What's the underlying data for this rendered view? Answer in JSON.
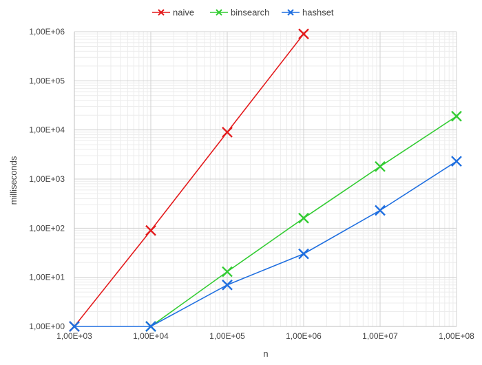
{
  "chart_data": {
    "type": "line",
    "title": "",
    "xlabel": "n",
    "ylabel": "milliseconds",
    "x_scale": "log",
    "y_scale": "log",
    "xlim": [
      1000,
      100000000
    ],
    "ylim": [
      1,
      1000000
    ],
    "x_tick_labels": [
      "1,00E+03",
      "1,00E+04",
      "1,00E+05",
      "1,00E+06",
      "1,00E+07",
      "1,00E+08"
    ],
    "y_tick_labels": [
      "1,00E+00",
      "1,00E+01",
      "1,00E+02",
      "1,00E+03",
      "1,00E+04",
      "1,00E+05",
      "1,00E+06"
    ],
    "grid": true,
    "legend_position": "top",
    "marker": "x",
    "series": [
      {
        "name": "naive",
        "color": "#e31a1c",
        "points": [
          {
            "x": 1000,
            "y": 1
          },
          {
            "x": 10000,
            "y": 90
          },
          {
            "x": 100000,
            "y": 9000
          },
          {
            "x": 1000000,
            "y": 900000
          }
        ]
      },
      {
        "name": "binsearch",
        "color": "#33cc33",
        "points": [
          {
            "x": 10000,
            "y": 1
          },
          {
            "x": 100000,
            "y": 13
          },
          {
            "x": 1000000,
            "y": 160
          },
          {
            "x": 10000000,
            "y": 1800
          },
          {
            "x": 100000000,
            "y": 19000
          }
        ]
      },
      {
        "name": "hashset",
        "color": "#1f6fe0",
        "points": [
          {
            "x": 1000,
            "y": 1
          },
          {
            "x": 10000,
            "y": 1
          },
          {
            "x": 100000,
            "y": 7
          },
          {
            "x": 1000000,
            "y": 30
          },
          {
            "x": 10000000,
            "y": 230
          },
          {
            "x": 100000000,
            "y": 2300
          }
        ]
      }
    ]
  }
}
